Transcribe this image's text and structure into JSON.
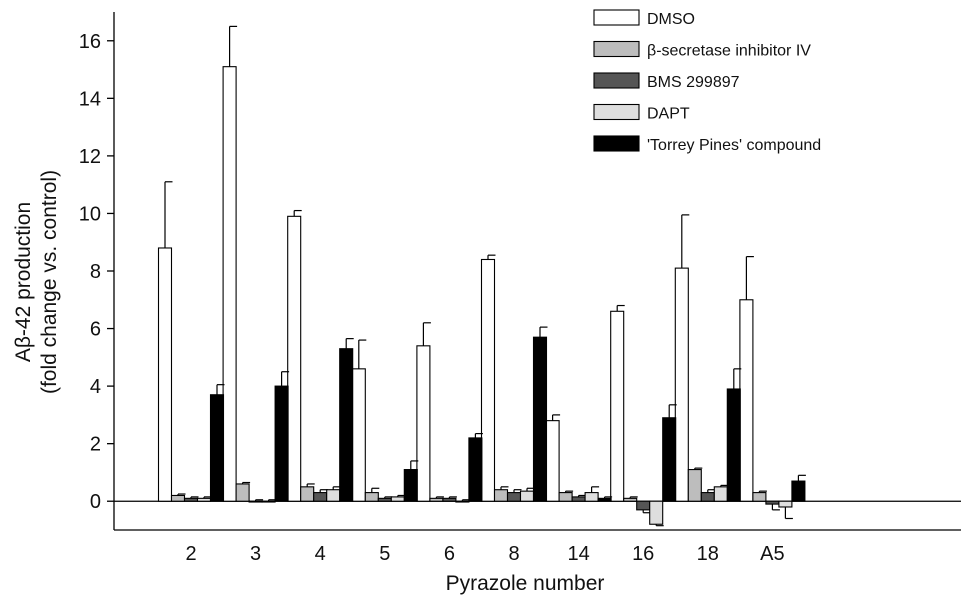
{
  "chart_data": {
    "type": "bar",
    "xlabel": "Pyrazole number",
    "ylabel": "Aβ-42 production",
    "ylabel_line2": "(fold change vs. control)",
    "categories": [
      "2",
      "3",
      "4",
      "5",
      "6",
      "8",
      "14",
      "16",
      "18",
      "A5"
    ],
    "ylim": [
      -1,
      17
    ],
    "yticks": [
      0,
      2,
      4,
      6,
      8,
      10,
      12,
      14,
      16
    ],
    "grid": false,
    "legend_position": "top-right",
    "series": [
      {
        "name": "DMSO",
        "color": "#ffffff",
        "values": [
          8.8,
          15.1,
          9.9,
          4.6,
          5.4,
          8.4,
          2.8,
          6.6,
          8.1,
          7.0
        ],
        "errors": [
          2.3,
          1.4,
          0.2,
          1.0,
          0.8,
          0.15,
          0.2,
          0.2,
          1.85,
          1.5
        ]
      },
      {
        "name": "β-secretase inhibitor IV",
        "color": "#bdbdbd",
        "values": [
          0.2,
          0.6,
          0.5,
          0.3,
          0.1,
          0.4,
          0.3,
          0.1,
          1.1,
          0.3
        ],
        "errors": [
          0.05,
          0.05,
          0.1,
          0.15,
          0.05,
          0.1,
          0.05,
          0.05,
          0.05,
          0.05
        ]
      },
      {
        "name": "BMS 299897",
        "color": "#555555",
        "values": [
          0.1,
          0.0,
          0.3,
          0.1,
          0.1,
          0.3,
          0.15,
          -0.3,
          0.3,
          -0.1
        ],
        "errors": [
          0.05,
          0.05,
          0.1,
          0.05,
          0.05,
          0.1,
          0.05,
          0.1,
          0.1,
          0.2
        ]
      },
      {
        "name": "DAPT",
        "color": "#dedede",
        "values": [
          0.1,
          0.0,
          0.4,
          0.15,
          0.0,
          0.35,
          0.3,
          -0.8,
          0.5,
          -0.2
        ],
        "errors": [
          0.05,
          0.05,
          0.1,
          0.05,
          0.05,
          0.1,
          0.2,
          0.05,
          0.05,
          0.4
        ]
      },
      {
        "name": "'Torrey Pines' compound",
        "color": "#000000",
        "values": [
          3.7,
          4.0,
          5.3,
          1.1,
          2.2,
          5.7,
          0.1,
          2.9,
          3.9,
          0.7
        ],
        "errors": [
          0.35,
          0.5,
          0.35,
          0.3,
          0.15,
          0.35,
          0.05,
          0.45,
          0.7,
          0.2
        ]
      }
    ]
  }
}
